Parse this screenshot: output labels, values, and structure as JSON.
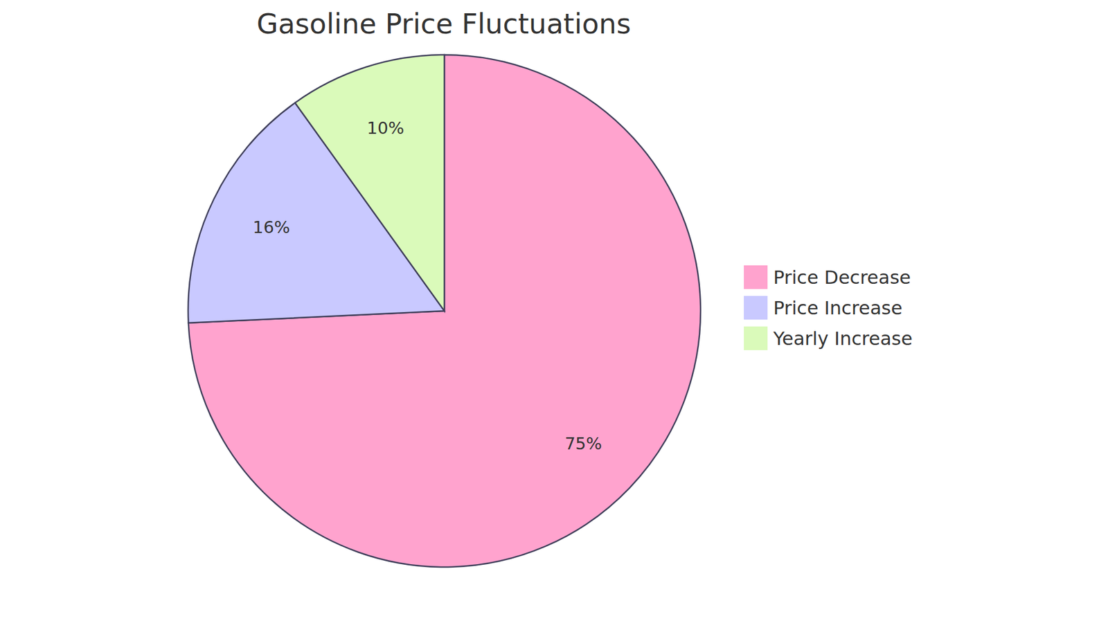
{
  "chart_data": {
    "type": "pie",
    "title": "Gasoline Price Fluctuations",
    "categories": [
      "Price Decrease",
      "Price Increase",
      "Yearly Increase"
    ],
    "values": [
      75,
      16,
      10
    ],
    "value_labels": [
      "75%",
      "16%",
      "10%"
    ],
    "colors": [
      "#ffa3ce",
      "#c9c9ff",
      "#dafaba"
    ],
    "data_labels": true,
    "legend": "right"
  }
}
